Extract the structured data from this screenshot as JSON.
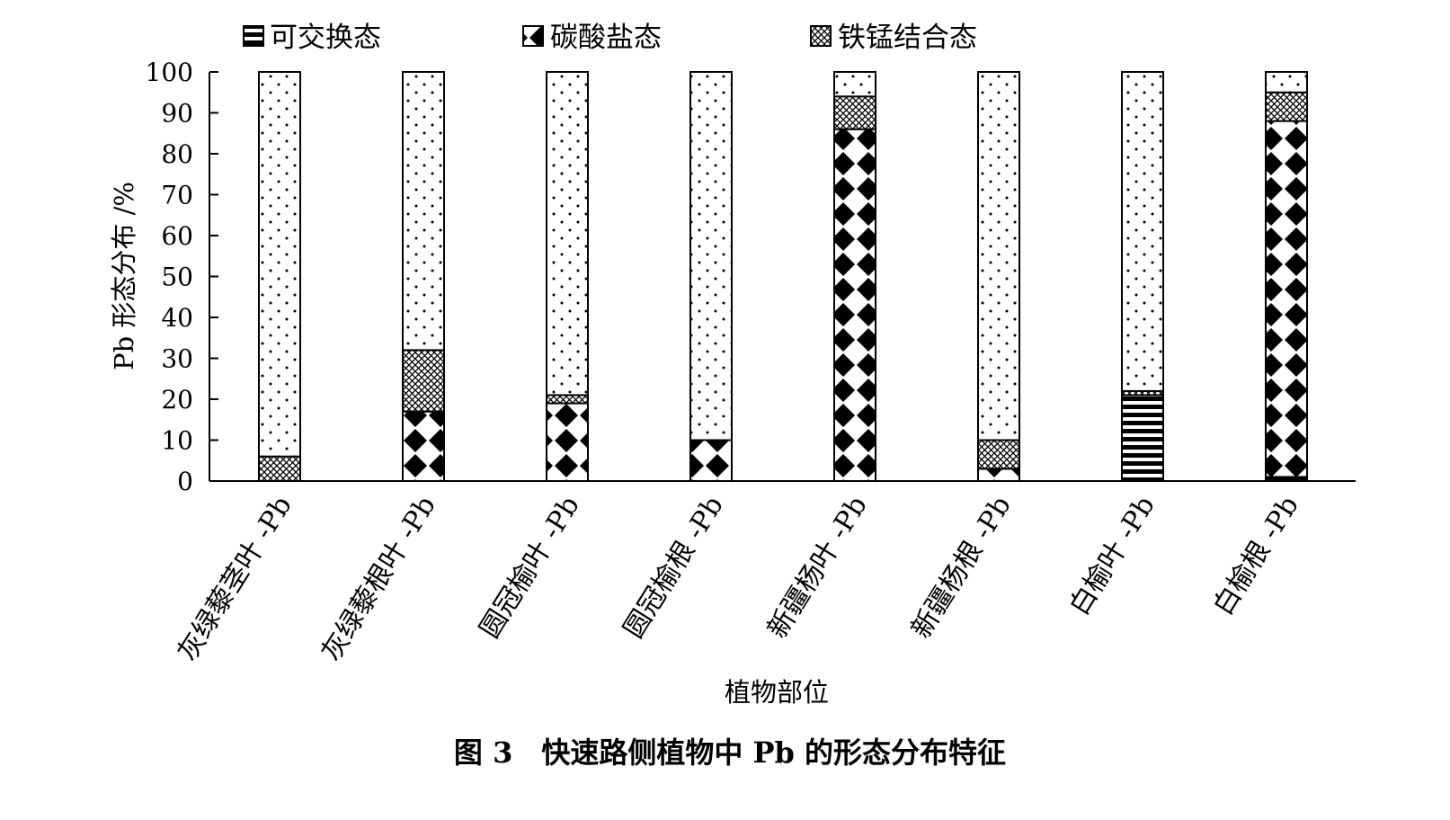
{
  "chart_data": {
    "type": "bar",
    "stacked": true,
    "categories": [
      "灰绿藜茎叶 -Pb",
      "灰绿藜根叶 -Pb",
      "圆冠榆叶 -Pb",
      "圆冠榆根 -Pb",
      "新疆杨叶 -Pb",
      "新疆杨根 -Pb",
      "白榆叶 -Pb",
      "白榆根 -Pb"
    ],
    "series": [
      {
        "name": "可交换态",
        "pattern": "horizontal-stripes",
        "values": [
          0,
          0,
          0,
          0,
          0,
          0,
          21,
          1
        ]
      },
      {
        "name": "碳酸盐态",
        "pattern": "black-diamonds",
        "values": [
          0,
          17,
          19,
          10,
          86,
          3,
          0,
          87
        ]
      },
      {
        "name": "铁锰结合态",
        "pattern": "crosshatch",
        "values": [
          6,
          15,
          2,
          0,
          8,
          7,
          1,
          7
        ]
      },
      {
        "name": "",
        "pattern": "sparse-dots",
        "values": [
          94,
          68,
          79,
          90,
          6,
          90,
          78,
          5
        ]
      }
    ],
    "xlabel": "植物部位",
    "ylabel": "Pb 形态分布 /%",
    "ylim": [
      0,
      100
    ],
    "yticks": [
      "0",
      "10",
      "20",
      "30",
      "40",
      "50",
      "60",
      "70",
      "80",
      "90",
      "100"
    ],
    "grid": false,
    "legend": "top"
  },
  "caption": "图 3　快速路侧植物中 Pb 的形态分布特征"
}
